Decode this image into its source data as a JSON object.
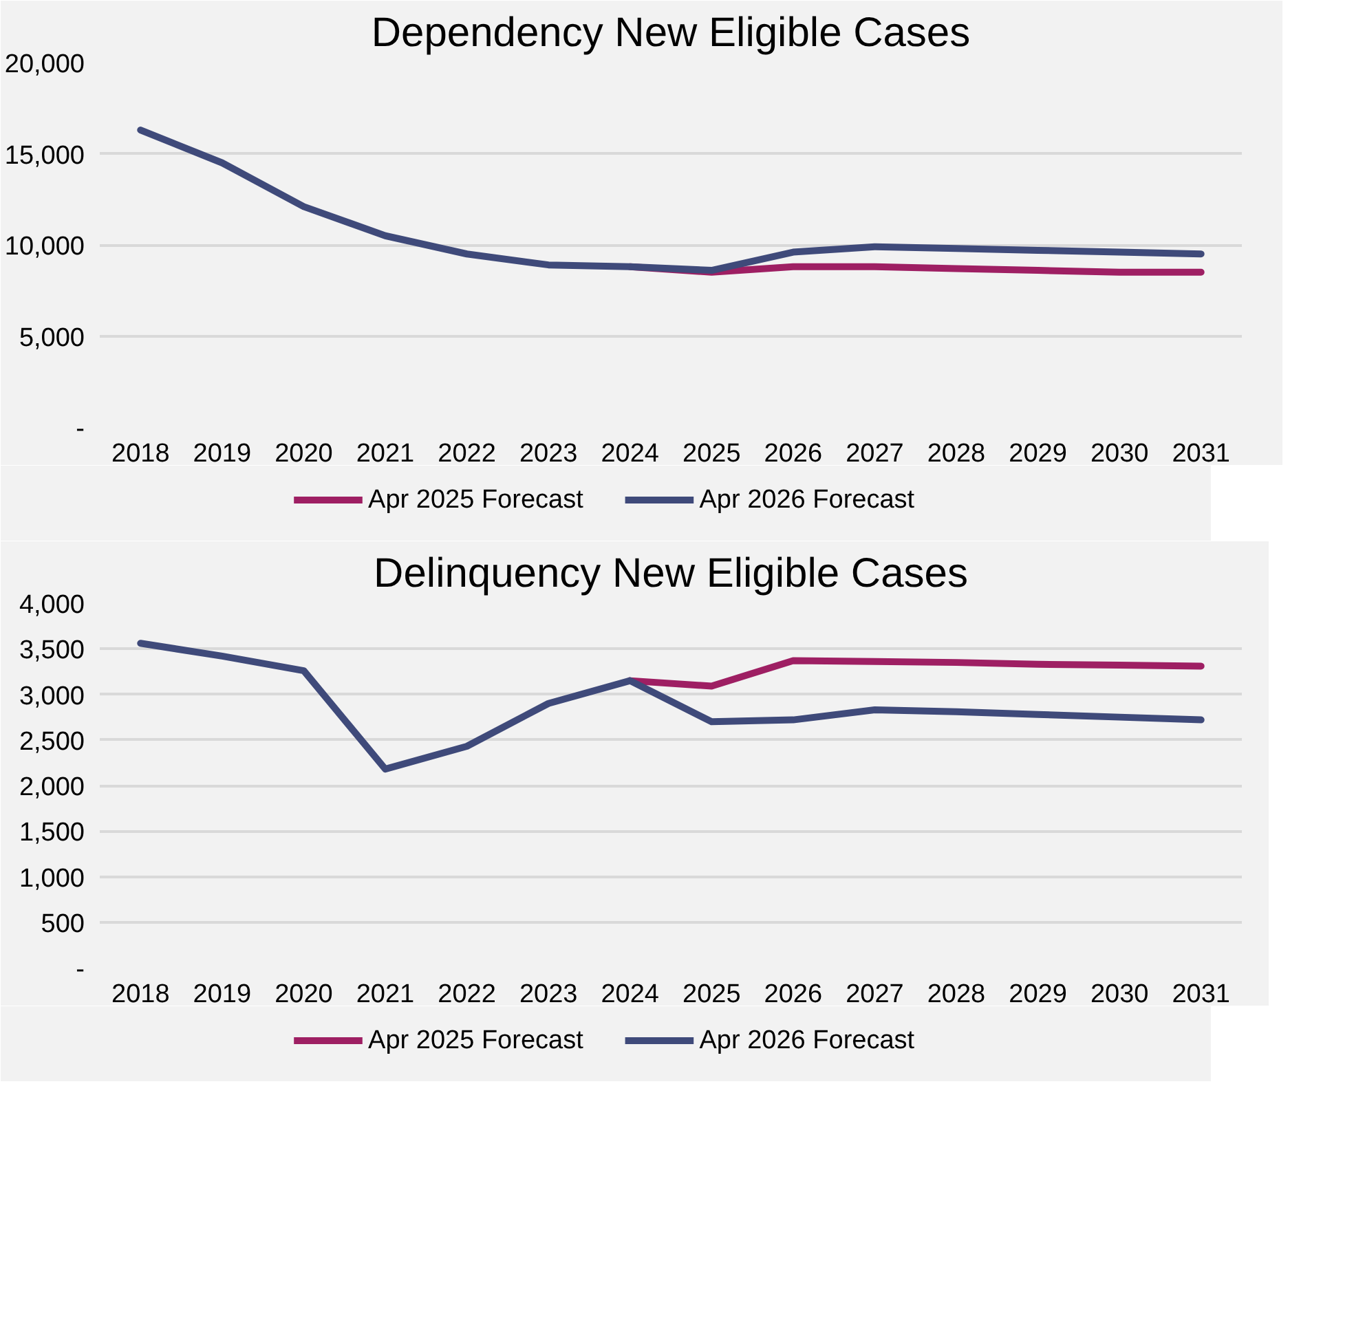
{
  "chart_data": [
    {
      "type": "line",
      "title": "Dependency New Eligible Cases",
      "categories": [
        "2018",
        "2019",
        "2020",
        "2021",
        "2022",
        "2023",
        "2024",
        "2025",
        "2026",
        "2027",
        "2028",
        "2029",
        "2030",
        "2031"
      ],
      "series": [
        {
          "name": "Apr 2025 Forecast",
          "color": "#9e1f63",
          "values": [
            null,
            null,
            null,
            null,
            null,
            null,
            8800,
            8500,
            8800,
            8800,
            8700,
            8600,
            8500,
            8500
          ]
        },
        {
          "name": "Apr 2026 Forecast",
          "color": "#3f4a7a",
          "values": [
            16300,
            14500,
            12100,
            10500,
            9500,
            8900,
            8800,
            8600,
            9600,
            9900,
            9800,
            9700,
            9600,
            9500
          ]
        }
      ],
      "ylim": [
        0,
        20000
      ],
      "yticks": [
        {
          "value": 0,
          "label": "-"
        },
        {
          "value": 5000,
          "label": "5,000"
        },
        {
          "value": 10000,
          "label": "10,000"
        },
        {
          "value": 15000,
          "label": "15,000"
        },
        {
          "value": 20000,
          "label": "20,000"
        }
      ],
      "grid": "y",
      "legend": "bottom",
      "marker": "none",
      "line_style": "solid"
    },
    {
      "type": "line",
      "title": "Delinquency New Eligible Cases",
      "categories": [
        "2018",
        "2019",
        "2020",
        "2021",
        "2022",
        "2023",
        "2024",
        "2025",
        "2026",
        "2027",
        "2028",
        "2029",
        "2030",
        "2031"
      ],
      "series": [
        {
          "name": "Apr 2025 Forecast",
          "color": "#9e1f63",
          "values": [
            null,
            null,
            null,
            null,
            null,
            null,
            3150,
            3090,
            3370,
            3360,
            3350,
            3330,
            3320,
            3310
          ]
        },
        {
          "name": "Apr 2026 Forecast",
          "color": "#3f4a7a",
          "values": [
            3560,
            3420,
            3260,
            2180,
            2430,
            2900,
            3150,
            2700,
            2720,
            2830,
            2810,
            2780,
            2750,
            2720
          ]
        }
      ],
      "ylim": [
        0,
        4000
      ],
      "yticks": [
        {
          "value": 0,
          "label": "-"
        },
        {
          "value": 500,
          "label": "500"
        },
        {
          "value": 1000,
          "label": "1,000"
        },
        {
          "value": 1500,
          "label": "1,500"
        },
        {
          "value": 2000,
          "label": "2,000"
        },
        {
          "value": 2500,
          "label": "2,500"
        },
        {
          "value": 3000,
          "label": "3,000"
        },
        {
          "value": 3500,
          "label": "3,500"
        },
        {
          "value": 4000,
          "label": "4,000"
        }
      ],
      "grid": "y",
      "legend": "bottom",
      "marker": "none",
      "line_style": "solid"
    }
  ]
}
